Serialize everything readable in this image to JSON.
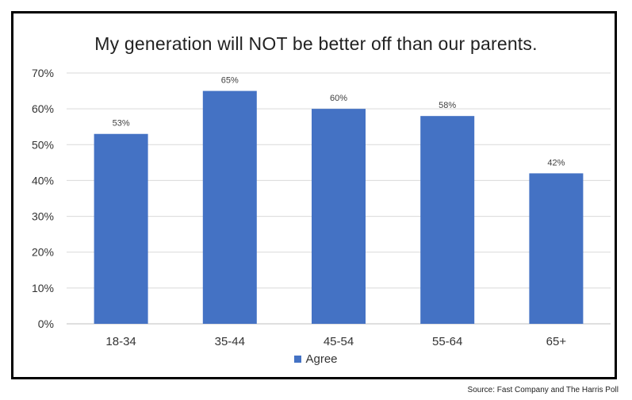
{
  "chart_data": {
    "type": "bar",
    "title": "My generation will NOT be better off than our parents.",
    "categories": [
      "18-34",
      "35-44",
      "45-54",
      "55-64",
      "65+"
    ],
    "series": [
      {
        "name": "Agree",
        "values": [
          53,
          65,
          60,
          58,
          42
        ],
        "data_labels": [
          "53%",
          "65%",
          "60%",
          "58%",
          "42%"
        ],
        "color": "#4472C4"
      }
    ],
    "ylim": [
      0,
      70
    ],
    "yticks": [
      0,
      10,
      20,
      30,
      40,
      50,
      60,
      70
    ],
    "ytick_labels": [
      "0%",
      "10%",
      "20%",
      "30%",
      "40%",
      "50%",
      "60%",
      "70%"
    ],
    "grid": true,
    "legend_position": "bottom",
    "xlabel": "",
    "ylabel": ""
  },
  "source": "Source: Fast Company and The Harris Poll",
  "colors": {
    "bar": "#4472C4",
    "grid": "#d9d9d9",
    "frame": "#000000",
    "text": "#333333"
  }
}
